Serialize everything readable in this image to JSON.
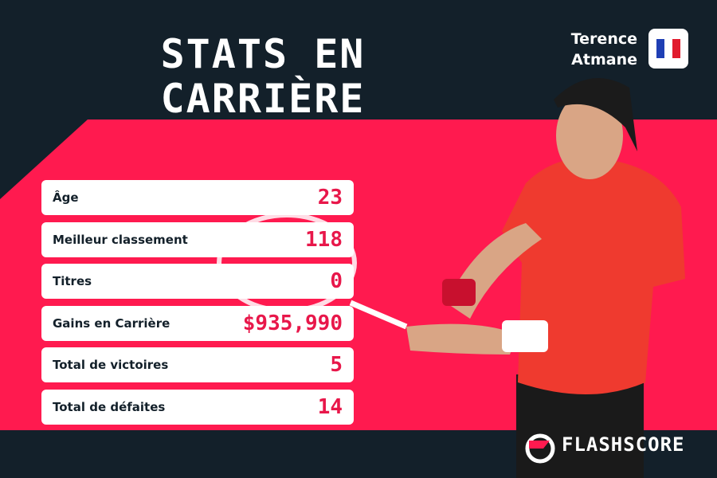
{
  "header": {
    "title_lines": [
      "STATS EN",
      "CARRIÈRE"
    ],
    "player_lines": [
      "Terence",
      "Atmane"
    ]
  },
  "table": {
    "rows": [
      [
        "Âge",
        "23"
      ],
      [
        "Meilleur classement",
        "118"
      ],
      [
        "Titres",
        "0"
      ],
      [
        "Gains en Carrière",
        "$935,990"
      ],
      [
        "Total de victoires",
        "5"
      ],
      [
        "Total de défaites",
        "14"
      ]
    ]
  },
  "footer": {
    "brand": "FLASHSCORE"
  }
}
